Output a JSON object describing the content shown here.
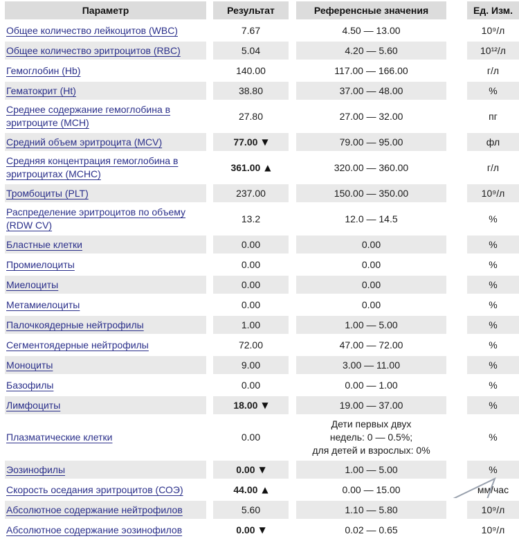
{
  "table": {
    "header": {
      "param": "Параметр",
      "result": "Результат",
      "reference": "Референсные значения",
      "unit": "Ед. Изм."
    },
    "rows": [
      {
        "param": "Общее количество лейкоцитов (WBC)",
        "result": "7.67",
        "flag": "",
        "reference": "4.50 — 13.00",
        "unit": "10⁹/л"
      },
      {
        "param": "Общее количество эритроцитов (RBC)",
        "result": "5.04",
        "flag": "",
        "reference": "4.20 — 5.60",
        "unit": "10¹²/л"
      },
      {
        "param": "Гемоглобин (Hb)",
        "result": "140.00",
        "flag": "",
        "reference": "117.00 — 166.00",
        "unit": "г/л"
      },
      {
        "param": "Гематокрит (Ht)",
        "result": "38.80",
        "flag": "",
        "reference": "37.00 — 48.00",
        "unit": "%"
      },
      {
        "param": "Среднее содержание гемоглобина в эритроците (MCH)",
        "result": "27.80",
        "flag": "",
        "reference": "27.00 — 32.00",
        "unit": "пг"
      },
      {
        "param": "Средний объем эритроцита (MCV)",
        "result": "77.00",
        "flag": "down",
        "reference": "79.00 — 95.00",
        "unit": "фл"
      },
      {
        "param": "Средняя концентрация гемоглобина в эритроцитах (MCHC)",
        "result": "361.00",
        "flag": "up",
        "reference": "320.00 — 360.00",
        "unit": "г/л"
      },
      {
        "param": "Тромбоциты (PLT)",
        "result": "237.00",
        "flag": "",
        "reference": "150.00 — 350.00",
        "unit": "10⁹/л"
      },
      {
        "param": "Распределение эритроцитов по объему (RDW CV)",
        "result": "13.2",
        "flag": "",
        "reference": "12.0 — 14.5",
        "unit": "%"
      },
      {
        "param": "Бластные клетки",
        "result": "0.00",
        "flag": "",
        "reference": "0.00",
        "unit": "%"
      },
      {
        "param": "Промиелоциты",
        "result": "0.00",
        "flag": "",
        "reference": "0.00",
        "unit": "%"
      },
      {
        "param": "Миелоциты",
        "result": "0.00",
        "flag": "",
        "reference": "0.00",
        "unit": "%"
      },
      {
        "param": "Метамиелоциты",
        "result": "0.00",
        "flag": "",
        "reference": "0.00",
        "unit": "%"
      },
      {
        "param": "Палочкоядерные нейтрофилы",
        "result": "1.00",
        "flag": "",
        "reference": "1.00 — 5.00",
        "unit": "%"
      },
      {
        "param": "Сегментоядерные нейтрофилы",
        "result": "72.00",
        "flag": "",
        "reference": "47.00 — 72.00",
        "unit": "%"
      },
      {
        "param": "Моноциты",
        "result": "9.00",
        "flag": "",
        "reference": "3.00 — 11.00",
        "unit": "%"
      },
      {
        "param": "Базофилы",
        "result": "0.00",
        "flag": "",
        "reference": "0.00 — 1.00",
        "unit": "%"
      },
      {
        "param": "Лимфоциты",
        "result": "18.00",
        "flag": "down",
        "reference": "19.00 — 37.00",
        "unit": "%"
      },
      {
        "param": "Плазматические клетки",
        "result": "0.00",
        "flag": "",
        "reference": "Дети первых двух недель: 0 — 0.5%; для детей и взрослых: 0%",
        "reference_lines": [
          "Дети первых двух",
          "недель: 0 — 0.5%;",
          "для детей и взрослых: 0%"
        ],
        "unit": "%"
      },
      {
        "param": "Эозинофилы",
        "result": "0.00",
        "flag": "down",
        "reference": "1.00 — 5.00",
        "unit": "%"
      },
      {
        "param": "Скорость оседания эритроцитов (СОЭ)",
        "result": "44.00",
        "flag": "up",
        "reference": "0.00 — 15.00",
        "unit": "мм/час"
      },
      {
        "param": "Абсолютное содержание нейтрофилов",
        "result": "5.60",
        "flag": "",
        "reference": "1.10 — 5.80",
        "unit": "10⁹/л"
      },
      {
        "param": "Абсолютное содержание эозинофилов",
        "result": "0.00",
        "flag": "down",
        "reference": "0.02 — 0.65",
        "unit": "10⁹/л"
      }
    ]
  },
  "icons": {
    "flag_up": "▲",
    "flag_down": "▼",
    "corner_shape": "triangle-outline"
  },
  "colors": {
    "link": "#2a2f8a",
    "header_bg": "#dcdcdc",
    "row_alt_bg": "#e9e9e9",
    "flag": "#111111",
    "corner_stroke": "#98a0ad"
  }
}
